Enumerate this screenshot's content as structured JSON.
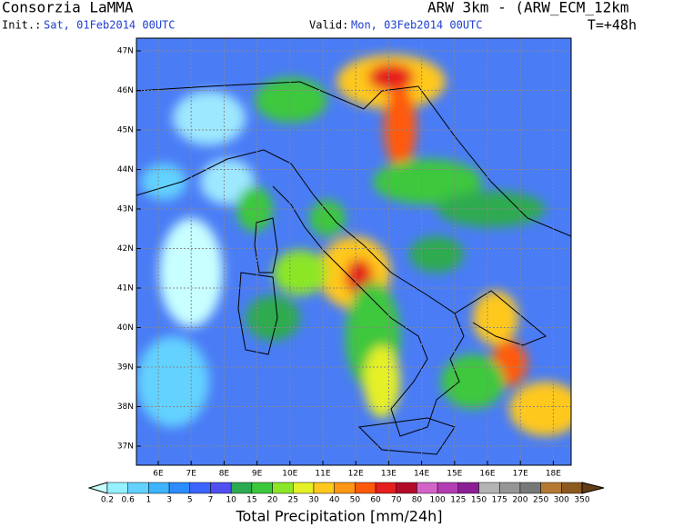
{
  "header": {
    "left_title": "Consorzia LaMMA",
    "init_label": "Init.:",
    "init_value": "Sat, 01Feb2014 00UTC",
    "valid_label": "Valid:",
    "valid_value": "Mon, 03Feb2014 00UTC",
    "right_title": "ARW 3km - (ARW_ECM_12km",
    "forecast": "T=+48h"
  },
  "map": {
    "lat_labels": [
      "47N",
      "46N",
      "45N",
      "44N",
      "43N",
      "42N",
      "41N",
      "40N",
      "39N",
      "38N",
      "37N"
    ],
    "lon_labels": [
      "6E",
      "7E",
      "8E",
      "9E",
      "10E",
      "11E",
      "12E",
      "13E",
      "14E",
      "15E",
      "16E",
      "17E",
      "18E"
    ]
  },
  "colorbar": {
    "labels": [
      0.2,
      0.6,
      1,
      3,
      5,
      7,
      10,
      15,
      20,
      25,
      30,
      40,
      50,
      60,
      70,
      80,
      100,
      125,
      150,
      175,
      200,
      250,
      300,
      350
    ],
    "colors": [
      "#c8ffff",
      "#96f0ff",
      "#64d2ff",
      "#3cb4ff",
      "#2d8cff",
      "#3c64ff",
      "#5050f0",
      "#2daa50",
      "#3cc83c",
      "#8ce628",
      "#e6f028",
      "#ffc81e",
      "#ff9614",
      "#ff5a0a",
      "#e61e1e",
      "#b40a28",
      "#d264c8",
      "#b43cb4",
      "#8c1e96",
      "#b4b4b4",
      "#969696",
      "#787878",
      "#b47832",
      "#8c5a1e",
      "#643c14"
    ],
    "title": "Total Precipitation [mm/24h]"
  }
}
